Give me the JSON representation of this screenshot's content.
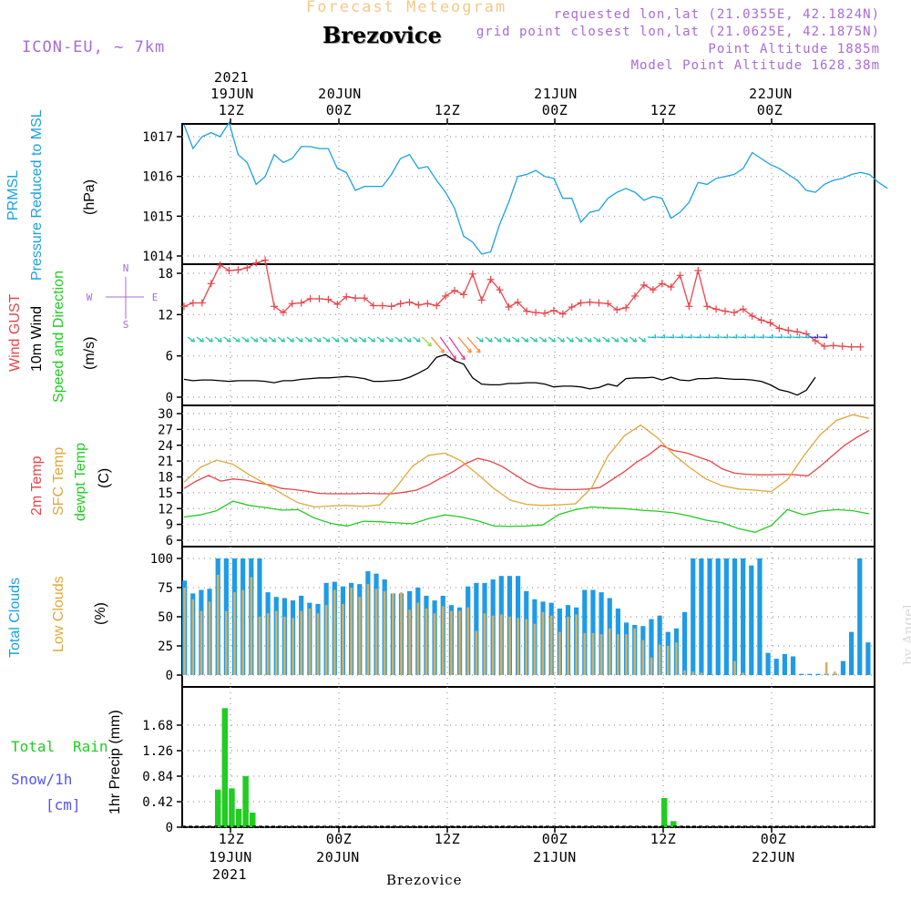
{
  "header": {
    "title": "Forecast Meteogram",
    "place": "Brezovice",
    "model": "ICON-EU, ~ 7km",
    "requested": "requested lon,lat (21.0355E, 42.1824N)",
    "gridpoint": "grid point closest lon,lat (21.0625E, 42.1875N)",
    "altitude": "Point Altitude 1885m",
    "model_altitude": "Model Point Altitude 1628.38m"
  },
  "time_axis": {
    "top_labels": [
      {
        "line1": "2021",
        "line2": "19JUN",
        "line3": "12Z"
      },
      {
        "line1": "",
        "line2": "20JUN",
        "line3": "00Z"
      },
      {
        "line1": "",
        "line2": "",
        "line3": "12Z"
      },
      {
        "line1": "",
        "line2": "21JUN",
        "line3": "00Z"
      },
      {
        "line1": "",
        "line2": "",
        "line3": "12Z"
      },
      {
        "line1": "",
        "line2": "22JUN",
        "line3": "00Z"
      }
    ],
    "bottom_labels": [
      {
        "line1": "12Z",
        "line2": "19JUN",
        "line3": "2021"
      },
      {
        "line1": "00Z",
        "line2": "20JUN",
        "line3": ""
      },
      {
        "line1": "12Z",
        "line2": "",
        "line3": ""
      },
      {
        "line1": "00Z",
        "line2": "21JUN",
        "line3": ""
      },
      {
        "line1": "12Z",
        "line2": "",
        "line3": ""
      },
      {
        "line1": "00Z",
        "line2": "22JUN",
        "line3": ""
      }
    ],
    "footer": "Brezovice"
  },
  "credit": "by Angel",
  "colors": {
    "pressure": "#1ba1e2",
    "gust": "#e8454a",
    "wind": "#000000",
    "t2m": "#e8454a",
    "sfc": "#e0a83a",
    "dewpt": "#22cc22",
    "clouds_total": "#1e9be6",
    "clouds_low": "#d7b060",
    "rain": "#22cc22",
    "snow": "#5555ee",
    "model": "#a96bd6"
  },
  "panel_labels": {
    "pressure": {
      "line1": "PRMSL",
      "line2": "Pressure Reduced to MSL",
      "unit": "(hPa)"
    },
    "wind": {
      "gust": "Wind GUST",
      "wind": "10m Wind",
      "speed": "Speed and Direction",
      "unit": "(m/s)",
      "compass_w": "W",
      "compass_e": "E",
      "compass_n": "N",
      "compass_s": "S"
    },
    "temp": {
      "t2m": "2m Temp",
      "sfc": "SFC Temp",
      "dewpt": "dewpt Temp",
      "unit": "(C)"
    },
    "clouds": {
      "total": "Total Clouds",
      "low": "Low Clouds",
      "unit": "(%)"
    },
    "precip": {
      "rain_word1": "Total",
      "rain_word2": "Rain",
      "snow": "Snow/1h",
      "snow_unit": "[cm]",
      "unit": "1hr Precip (mm)"
    }
  },
  "chart_data": [
    {
      "type": "line",
      "panel": "pressure",
      "x_start": "2021-06-19 07Z",
      "x_step_hours": 1,
      "ylim": [
        1013.8,
        1017.5
      ],
      "yticks": [
        "1014",
        "1015",
        "1016",
        "1017"
      ],
      "series": [
        {
          "values": [
            1017.3,
            1016.7,
            1017.0,
            1017.1,
            1017.0,
            1017.35,
            1016.55,
            1016.35,
            1015.8,
            1016.0,
            1016.55,
            1016.35,
            1016.45,
            1016.75,
            1016.75,
            1016.7,
            1016.7,
            1016.2,
            1016.1,
            1015.65,
            1015.75,
            1015.75,
            1015.75,
            1016.05,
            1016.45,
            1016.55,
            1016.2,
            1016.25,
            1015.9,
            1015.6,
            1015.2,
            1014.5,
            1014.35,
            1014.05,
            1014.1,
            1014.8,
            1015.35,
            1016.0,
            1016.05,
            1016.15,
            1016.0,
            1015.95,
            1015.45,
            1015.45,
            1014.85,
            1015.1,
            1015.15,
            1015.45,
            1015.6,
            1015.7,
            1015.6,
            1015.4,
            1015.5,
            1015.45,
            1014.95,
            1015.1,
            1015.35,
            1015.85,
            1015.8,
            1015.95,
            1016.0,
            1016.05,
            1016.2,
            1016.6,
            1016.45,
            1016.3,
            1016.2,
            1016.05,
            1015.9,
            1015.65,
            1015.6,
            1015.8,
            1015.9,
            1015.95,
            1016.05,
            1016.1,
            1016.05,
            1015.85,
            1015.7
          ]
        }
      ]
    },
    {
      "type": "line",
      "panel": "wind",
      "x_start": "2021-06-19 07Z",
      "x_step_hours": 1,
      "ylim": [
        0,
        20
      ],
      "yticks": [
        "0",
        "6",
        "12",
        "18"
      ],
      "series": [
        {
          "name": "Wind GUST",
          "values": [
            13.2,
            13.7,
            13.7,
            16.5,
            19.2,
            18.4,
            18.5,
            18.8,
            19.5,
            19.9,
            13.2,
            12.3,
            13.6,
            13.7,
            14.3,
            14.3,
            14.2,
            13.5,
            14.6,
            14.4,
            14.4,
            13.3,
            13.3,
            13.2,
            13.6,
            13.8,
            13.4,
            13.6,
            13.3,
            14.7,
            15.5,
            14.9,
            17.9,
            14.1,
            17.1,
            15.6,
            13.1,
            13.8,
            12.5,
            12.3,
            12.2,
            12.6,
            12.1,
            13.1,
            13.7,
            13.8,
            13.7,
            13.6,
            12.7,
            13.0,
            14.7,
            16.3,
            15.6,
            16.5,
            16.0,
            17.7,
            13.2,
            18.4,
            13.2,
            12.8,
            12.5,
            12.3,
            12.8,
            11.8,
            11.2,
            10.8,
            10.0,
            9.7,
            9.5,
            9.2,
            8.2,
            7.4,
            7.5,
            7.4,
            7.3,
            7.3
          ]
        },
        {
          "name": "10m Wind",
          "values": [
            2.6,
            2.4,
            2.5,
            2.5,
            2.4,
            2.3,
            2.4,
            2.4,
            2.4,
            2.3,
            2.1,
            2.4,
            2.4,
            2.6,
            2.7,
            2.8,
            2.8,
            2.9,
            3.0,
            2.9,
            2.7,
            2.3,
            2.3,
            2.4,
            2.5,
            2.9,
            3.5,
            4.2,
            5.8,
            6.2,
            5.3,
            4.8,
            2.8,
            1.9,
            1.8,
            1.8,
            2.0,
            2.0,
            2.1,
            2.1,
            1.9,
            1.5,
            1.6,
            1.6,
            1.5,
            1.2,
            1.4,
            1.9,
            1.6,
            2.7,
            2.8,
            2.8,
            2.9,
            2.5,
            2.9,
            2.5,
            2.4,
            2.7,
            2.7,
            2.8,
            2.7,
            2.6,
            2.6,
            2.5,
            2.3,
            1.8,
            1.1,
            0.8,
            0.3,
            1.0,
            2.9
          ]
        }
      ]
    },
    {
      "type": "line",
      "panel": "temperature",
      "x_start": "2021-06-19 07Z",
      "x_step_hours": 1,
      "ylim": [
        6,
        30
      ],
      "yticks": [
        "6",
        "9",
        "12",
        "15",
        "18",
        "21",
        "24",
        "27",
        "30"
      ],
      "series": [
        {
          "name": "2m Temp",
          "values": [
            15.8,
            17.2,
            18.3,
            17.2,
            17.6,
            17.4,
            16.9,
            16.5,
            15.8,
            15.6,
            15.3,
            14.9,
            14.8,
            14.8,
            14.8,
            14.9,
            14.8,
            14.8,
            15.1,
            15.5,
            16.5,
            17.8,
            19.0,
            20.5,
            21.5,
            21.0,
            20.0,
            18.5,
            17.0,
            16.0,
            15.7,
            15.6,
            15.6,
            15.7,
            16.0,
            17.5,
            19.0,
            20.8,
            22.2,
            24.0,
            23.0,
            22.6,
            21.8,
            21.0,
            19.5,
            18.7,
            18.5,
            18.4,
            18.4,
            18.5,
            18.4,
            18.2,
            20.0,
            22.0,
            24.0,
            25.5,
            26.8
          ]
        },
        {
          "name": "SFC Temp",
          "values": [
            17.0,
            19.8,
            21.2,
            20.4,
            18.4,
            16.7,
            14.8,
            13.1,
            12.3,
            12.5,
            12.6,
            12.4,
            12.7,
            16.0,
            20.0,
            22.1,
            22.5,
            21.0,
            18.5,
            15.8,
            13.6,
            12.8,
            12.6,
            12.7,
            12.9,
            16.0,
            22.0,
            25.8,
            27.8,
            25.5,
            22.3,
            19.8,
            17.6,
            16.3,
            15.7,
            15.5,
            15.2,
            17.5,
            22.0,
            26.0,
            28.7,
            29.8,
            29.1
          ]
        },
        {
          "name": "dewpt Temp",
          "values": [
            10.4,
            10.8,
            11.6,
            13.4,
            12.6,
            12.2,
            11.7,
            11.8,
            10.2,
            9.2,
            8.7,
            9.6,
            9.5,
            9.3,
            9.1,
            10.1,
            10.8,
            10.4,
            9.7,
            8.7,
            8.6,
            8.7,
            8.9,
            10.9,
            11.8,
            12.3,
            12.1,
            12.0,
            11.7,
            11.5,
            11.2,
            10.6,
            9.8,
            9.3,
            8.2,
            7.5,
            8.8,
            11.8,
            10.8,
            11.5,
            11.8,
            11.6,
            11.0
          ]
        }
      ]
    },
    {
      "type": "bar",
      "panel": "clouds",
      "x_start": "2021-06-19 07Z",
      "x_step_hours": 1,
      "ylim": [
        0,
        100
      ],
      "yticks": [
        "0",
        "25",
        "50",
        "75",
        "100"
      ],
      "series": [
        {
          "name": "Total Clouds",
          "values": [
            81,
            70,
            73,
            74,
            100,
            100,
            100,
            100,
            100,
            100,
            71,
            67,
            66,
            64,
            68,
            62,
            61,
            79,
            80,
            76,
            79,
            78,
            89,
            87,
            82,
            70,
            70,
            72,
            75,
            68,
            64,
            68,
            60,
            58,
            76,
            79,
            79,
            82,
            85,
            85,
            85,
            72,
            65,
            63,
            62,
            57,
            60,
            58,
            73,
            73,
            71,
            66,
            57,
            45,
            43,
            42,
            48,
            51,
            37,
            40,
            54,
            100,
            100,
            100,
            100,
            100,
            100,
            100,
            94,
            100,
            19,
            14,
            18,
            16,
            1,
            1,
            1,
            1,
            1,
            12,
            37,
            100,
            28,
            18
          ]
        },
        {
          "name": "Low Clouds",
          "values": [
            75,
            65,
            55,
            63,
            86,
            55,
            71,
            73,
            84,
            50,
            53,
            55,
            50,
            49,
            55,
            57,
            53,
            60,
            73,
            61,
            75,
            67,
            78,
            74,
            72,
            70,
            71,
            56,
            62,
            57,
            53,
            59,
            55,
            55,
            58,
            38,
            53,
            51,
            52,
            50,
            49,
            48,
            44,
            54,
            51,
            37,
            50,
            52,
            36,
            36,
            35,
            40,
            35,
            35,
            40,
            30,
            15,
            26,
            25,
            28,
            4,
            3,
            2,
            0,
            0,
            0,
            12,
            2,
            0,
            0,
            0,
            0,
            0,
            0,
            0,
            0,
            0,
            11,
            3
          ]
        }
      ]
    },
    {
      "type": "bar",
      "panel": "precip",
      "x_start": "2021-06-19 07Z",
      "x_step_hours": 1,
      "ylim": [
        0,
        2.1
      ],
      "yticks": [
        "0",
        "0.42",
        "0.84",
        "1.26",
        "1.68"
      ],
      "series": [
        {
          "name": "Total Rain",
          "values": [
            0,
            0,
            0,
            0,
            0,
            0,
            0,
            0,
            0.62,
            1.96,
            0.64,
            0.3,
            0.84,
            0.24,
            0,
            0,
            0,
            0,
            0,
            0,
            0,
            0,
            0,
            0,
            0,
            0,
            0,
            0,
            0,
            0,
            0,
            0,
            0,
            0,
            0,
            0,
            0,
            0,
            0,
            0,
            0,
            0,
            0,
            0,
            0,
            0,
            0,
            0,
            0,
            0,
            0,
            0,
            0,
            0,
            0,
            0,
            0,
            0,
            0,
            0,
            0,
            0,
            0,
            0,
            0,
            0,
            0,
            0,
            0,
            0,
            0,
            0,
            0,
            0,
            0.48,
            0.1
          ]
        }
      ]
    }
  ]
}
